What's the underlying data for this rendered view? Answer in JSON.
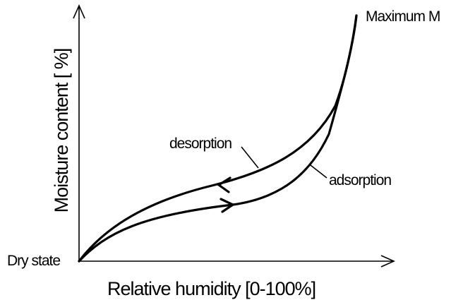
{
  "labels": {
    "maximum": "Maximum M",
    "desorption": "desorption",
    "adsorption": "adsorption",
    "dry_state": "Dry state"
  },
  "axes": {
    "x_label": "Relative humidity [0-100%]",
    "y_label": "Moisture content [ %]"
  }
}
